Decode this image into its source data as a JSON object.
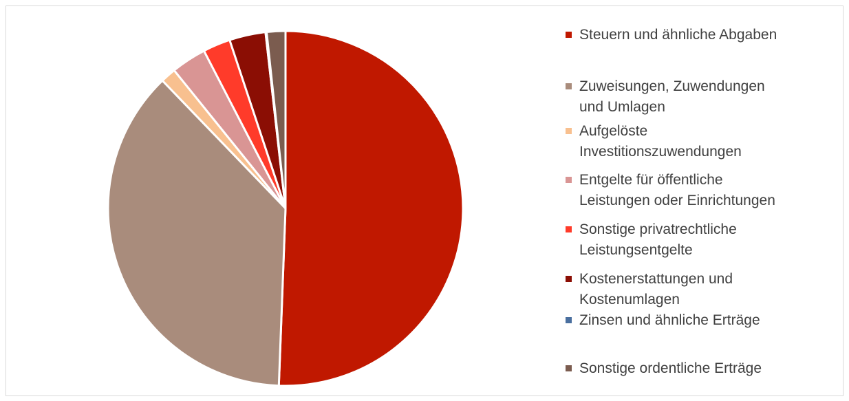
{
  "chart_data": {
    "type": "pie",
    "categories": [
      "Steuern und ähnliche Abgaben",
      "Zuweisungen, Zuwendungen\nund Umlagen",
      "Aufgelöste\nInvestitionszuwendungen",
      "Entgelte für öffentliche\nLeistungen oder Einrichtungen",
      "Sonstige privatrechtliche\n Leistungsentgelte",
      "Kostenerstattungen und\nKostenumlagen",
      "Zinsen und ähnliche Erträge",
      "Sonstige ordentliche Erträge"
    ],
    "values": [
      50.6,
      37.2,
      1.4,
      3.2,
      2.5,
      3.3,
      0.1,
      1.7
    ],
    "colors": [
      "#c01800",
      "#a98c7c",
      "#f8c08f",
      "#d99594",
      "#ff3b2a",
      "#8b0e04",
      "#4a6f9f",
      "#7b5c4f"
    ],
    "legend": "right"
  }
}
